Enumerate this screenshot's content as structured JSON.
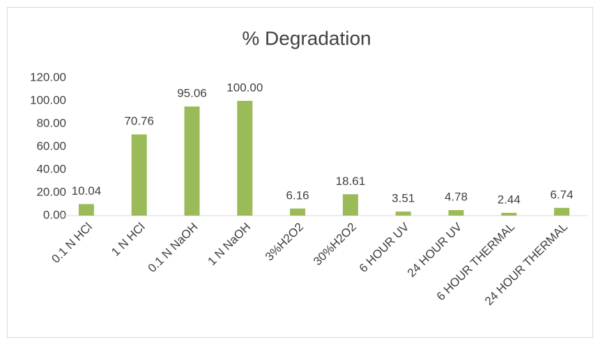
{
  "chart_data": {
    "type": "bar",
    "title": "% Degradation",
    "categories": [
      "0.1 N HCl",
      "1 N HCl",
      "0.1 N NaOH",
      "1 N NaOH",
      "3%H2O2",
      "30%H2O2",
      "6 HOUR UV",
      "24 HOUR UV",
      "6 HOUR THERMAL",
      "24 HOUR THERMAL"
    ],
    "values": [
      10.04,
      70.76,
      95.06,
      100,
      6.16,
      18.61,
      3.51,
      4.78,
      2.44,
      6.74
    ],
    "value_labels": [
      "10.04",
      "70.76",
      "95.06",
      "100.00",
      "6.16",
      "18.61",
      "3.51",
      "4.78",
      "2.44",
      "6.74"
    ],
    "color": "#9bbb59",
    "ylim": [
      0,
      120
    ],
    "yticks": [
      {
        "value": 0,
        "label": "0.00"
      },
      {
        "value": 20,
        "label": "20.00"
      },
      {
        "value": 40,
        "label": "40.00"
      },
      {
        "value": 60,
        "label": "60.00"
      },
      {
        "value": 80,
        "label": "80.00"
      },
      {
        "value": 100,
        "label": "100.00"
      },
      {
        "value": 120,
        "label": "120.00"
      }
    ],
    "grid": false
  }
}
